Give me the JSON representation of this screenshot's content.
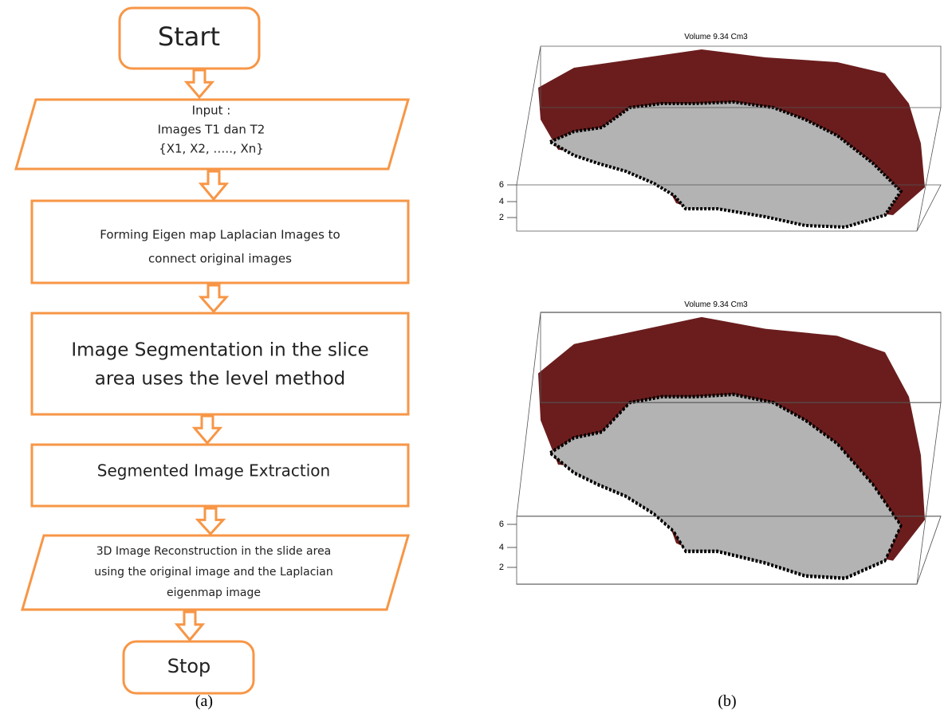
{
  "flowchart": {
    "nodes": [
      {
        "lines": [
          "Start"
        ]
      },
      {
        "lines": [
          "Input :",
          "Images T1 dan T2",
          "{X1, X2, ….., Xn}"
        ]
      },
      {
        "lines": [
          "Forming  Eigen map Laplacian Images to",
          "connect original images"
        ]
      },
      {
        "lines": [
          "Image Segmentation in the slice",
          "area uses the level method"
        ]
      },
      {
        "lines": [
          "Segmented Image Extraction"
        ]
      },
      {
        "lines": [
          "3D Image Reconstruction in the slide area",
          "using the original image and the Laplacian",
          "eigenmap image"
        ]
      },
      {
        "lines": [
          "Stop"
        ]
      }
    ]
  },
  "renders": [
    {
      "title": "Volume 9.34 Cm3",
      "ticks": [
        6,
        4,
        2
      ]
    },
    {
      "title": "Volume 9.34 Cm3",
      "ticks": [
        6,
        4,
        2
      ]
    }
  ],
  "captions": [
    "(a)",
    "(b)"
  ]
}
